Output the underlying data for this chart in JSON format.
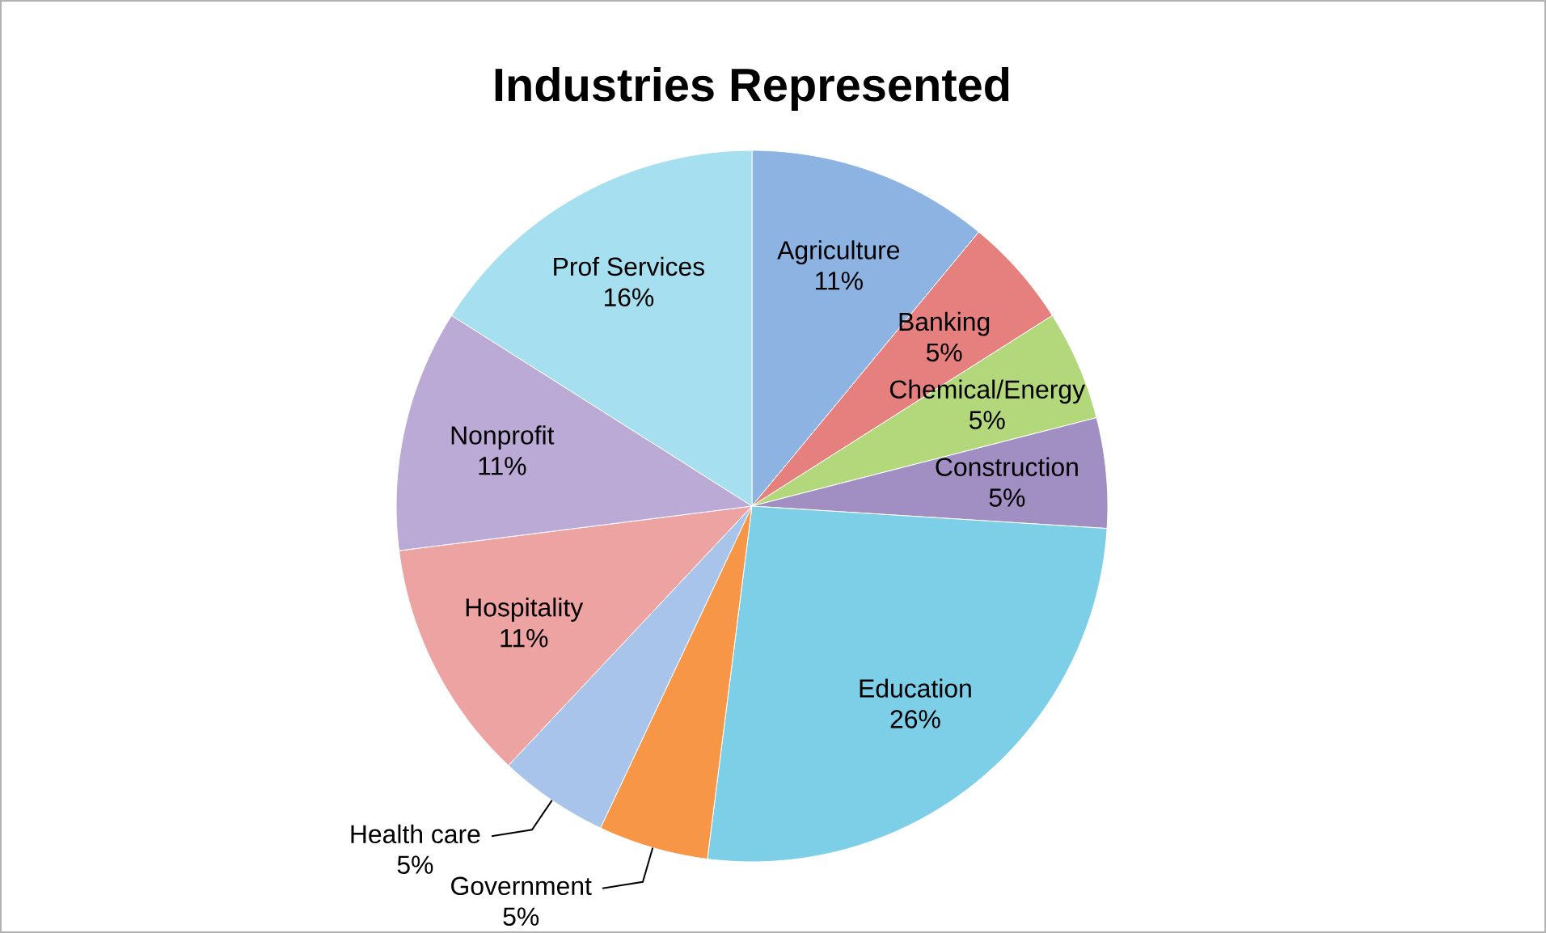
{
  "chart_data": {
    "type": "pie",
    "title": "Industries Represented",
    "categories": [
      "Agriculture",
      "Banking",
      "Chemical/Energy",
      "Construction",
      "Education",
      "Government",
      "Health care",
      "Hospitality",
      "Nonprofit",
      "Prof Services"
    ],
    "values": [
      11,
      5,
      5,
      5,
      26,
      5,
      5,
      11,
      11,
      16
    ],
    "value_labels": [
      "11%",
      "5%",
      "5%",
      "5%",
      "26%",
      "5%",
      "5%",
      "11%",
      "11%",
      "16%"
    ],
    "colors": [
      "#8db3e2",
      "#e6807f",
      "#b3d77b",
      "#a18fc4",
      "#7ccfe6",
      "#f79646",
      "#a9c4eb",
      "#eda3a2",
      "#bba9d6",
      "#a6e0f0"
    ]
  }
}
